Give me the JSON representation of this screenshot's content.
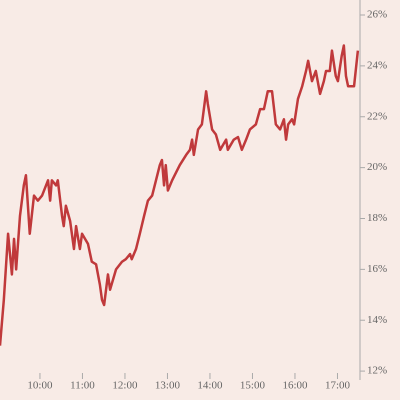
{
  "chart_data": {
    "type": "line",
    "x": [
      9.06,
      9.15,
      9.25,
      9.34,
      9.39,
      9.44,
      9.53,
      9.62,
      9.67,
      9.76,
      9.86,
      9.95,
      10.05,
      10.19,
      10.24,
      10.28,
      10.38,
      10.42,
      10.52,
      10.56,
      10.61,
      10.71,
      10.8,
      10.85,
      10.94,
      10.99,
      11.13,
      11.22,
      11.32,
      11.41,
      11.46,
      11.51,
      11.6,
      11.65,
      11.79,
      11.93,
      12.02,
      12.12,
      12.16,
      12.26,
      12.35,
      12.45,
      12.54,
      12.64,
      12.73,
      12.82,
      12.87,
      12.92,
      12.96,
      13.01,
      13.11,
      13.2,
      13.29,
      13.44,
      13.53,
      13.58,
      13.62,
      13.72,
      13.81,
      13.91,
      13.95,
      14.05,
      14.14,
      14.24,
      14.38,
      14.42,
      14.56,
      14.66,
      14.75,
      14.85,
      14.94,
      15.08,
      15.18,
      15.27,
      15.36,
      15.46,
      15.55,
      15.65,
      15.74,
      15.79,
      15.84,
      15.93,
      15.98,
      16.07,
      16.17,
      16.26,
      16.31,
      16.4,
      16.49,
      16.59,
      16.68,
      16.73,
      16.82,
      16.87,
      16.96,
      17.01,
      17.1,
      17.15,
      17.2,
      17.25,
      17.39,
      17.48
    ],
    "values": [
      13.0,
      14.8,
      17.4,
      15.8,
      17.2,
      16.0,
      18.1,
      19.3,
      19.7,
      17.4,
      18.9,
      18.7,
      18.9,
      19.5,
      18.7,
      19.5,
      19.3,
      19.5,
      18.1,
      17.7,
      18.5,
      17.9,
      16.8,
      17.7,
      16.8,
      17.4,
      17.0,
      16.3,
      16.2,
      15.4,
      14.8,
      14.6,
      15.8,
      15.2,
      16.0,
      16.3,
      16.4,
      16.6,
      16.4,
      16.8,
      17.4,
      18.1,
      18.7,
      18.9,
      19.5,
      20.1,
      20.3,
      19.3,
      20.1,
      19.1,
      19.5,
      19.8,
      20.1,
      20.5,
      20.7,
      21.1,
      20.5,
      21.5,
      21.7,
      23.0,
      22.5,
      21.5,
      21.3,
      20.7,
      21.1,
      20.7,
      21.1,
      21.2,
      20.7,
      21.1,
      21.5,
      21.7,
      22.3,
      22.3,
      23.0,
      23.0,
      21.7,
      21.5,
      21.9,
      21.1,
      21.7,
      21.9,
      21.7,
      22.7,
      23.2,
      23.8,
      24.2,
      23.4,
      23.8,
      22.9,
      23.4,
      23.8,
      23.8,
      24.6,
      23.6,
      23.4,
      24.4,
      24.8,
      23.6,
      23.2,
      23.2,
      24.6
    ],
    "color": "#c0393b",
    "xlim": [
      9.06,
      17.53
    ],
    "xticks": [
      {
        "value": 10,
        "label": "10:00"
      },
      {
        "value": 11,
        "label": "11:00"
      },
      {
        "value": 12,
        "label": "12:00"
      },
      {
        "value": 13,
        "label": "13:00"
      },
      {
        "value": 14,
        "label": "14:00"
      },
      {
        "value": 15,
        "label": "15:00"
      },
      {
        "value": 16,
        "label": "16:00"
      },
      {
        "value": 17,
        "label": "17:00"
      }
    ],
    "ylim": [
      11.65,
      26.59
    ],
    "yticks": [
      {
        "value": 12,
        "label": "12%"
      },
      {
        "value": 14,
        "label": "14%"
      },
      {
        "value": 16,
        "label": "16%"
      },
      {
        "value": 18,
        "label": "18%"
      },
      {
        "value": 20,
        "label": "20%"
      },
      {
        "value": 22,
        "label": "22%"
      },
      {
        "value": 24,
        "label": "24%"
      },
      {
        "value": 26,
        "label": "26%"
      }
    ]
  }
}
